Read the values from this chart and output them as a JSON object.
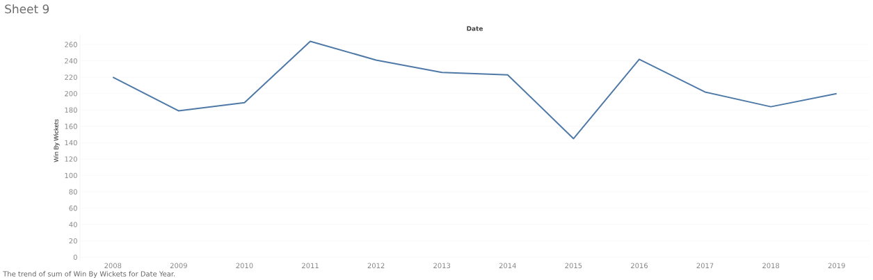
{
  "chart_data": {
    "type": "line",
    "title": "Sheet 9",
    "xlabel": "Date",
    "ylabel": "Win By Wickets",
    "annotations": [
      "The trend of sum of Win By Wickets for Date Year."
    ],
    "categories": [
      "2008",
      "2009",
      "2010",
      "2011",
      "2012",
      "2013",
      "2014",
      "2015",
      "2016",
      "2017",
      "2018",
      "2019"
    ],
    "series": [
      {
        "color": "#4e79a7",
        "values": [
          220,
          179,
          189,
          264,
          241,
          226,
          223,
          145,
          242,
          202,
          184,
          200
        ]
      }
    ],
    "ylim": [
      -4,
      272
    ],
    "yticks": [
      0,
      20,
      40,
      60,
      80,
      100,
      120,
      140,
      160,
      180,
      200,
      220,
      240,
      260
    ],
    "grid": "y",
    "marker": "none",
    "line_style": "solid"
  }
}
